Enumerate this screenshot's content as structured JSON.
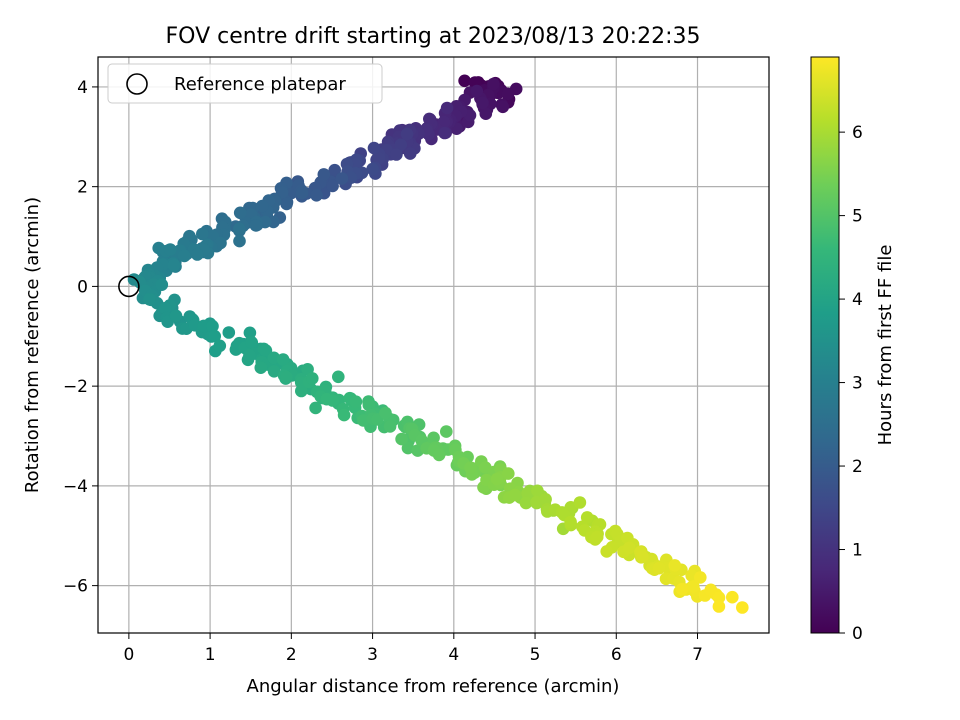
{
  "chart_data": {
    "type": "scatter",
    "title": "FOV centre drift starting at 2023/08/13 20:22:35",
    "xlabel": "Angular distance from reference (arcmin)",
    "ylabel": "Rotation from reference (arcmin)",
    "xlim": [
      -0.38,
      7.88
    ],
    "ylim": [
      -6.95,
      4.6
    ],
    "xticks": [
      0,
      1,
      2,
      3,
      4,
      5,
      6,
      7
    ],
    "yticks": [
      -6,
      -4,
      -2,
      0,
      2,
      4
    ],
    "grid": true,
    "legend": {
      "placement": "top-left",
      "entries": [
        "Reference platepar"
      ]
    },
    "reference_point": {
      "x": 0,
      "y": 0
    },
    "colorbar": {
      "label": "Hours from first FF file",
      "colormap": "viridis",
      "range": [
        0,
        6.9
      ],
      "ticks": [
        0,
        1,
        2,
        3,
        4,
        5,
        6
      ]
    },
    "path_knots": [
      {
        "t": 0.0,
        "x": 4.25,
        "y": 4.05
      },
      {
        "t": 0.2,
        "x": 4.65,
        "y": 3.85
      },
      {
        "t": 0.6,
        "x": 4.0,
        "y": 3.4
      },
      {
        "t": 1.0,
        "x": 3.5,
        "y": 3.05
      },
      {
        "t": 1.5,
        "x": 2.9,
        "y": 2.4
      },
      {
        "t": 2.0,
        "x": 2.1,
        "y": 1.85
      },
      {
        "t": 2.5,
        "x": 1.3,
        "y": 1.2
      },
      {
        "t": 3.0,
        "x": 0.5,
        "y": 0.5
      },
      {
        "t": 3.3,
        "x": 0.2,
        "y": 0.0
      },
      {
        "t": 3.6,
        "x": 0.6,
        "y": -0.6
      },
      {
        "t": 4.0,
        "x": 1.5,
        "y": -1.3
      },
      {
        "t": 4.5,
        "x": 2.5,
        "y": -2.2
      },
      {
        "t": 5.0,
        "x": 3.5,
        "y": -3.0
      },
      {
        "t": 5.5,
        "x": 4.4,
        "y": -3.8
      },
      {
        "t": 6.0,
        "x": 5.3,
        "y": -4.5
      },
      {
        "t": 6.4,
        "x": 6.2,
        "y": -5.3
      },
      {
        "t": 6.7,
        "x": 6.8,
        "y": -5.9
      },
      {
        "t": 6.9,
        "x": 7.4,
        "y": -6.3
      }
    ],
    "n_points": 520,
    "scatter": {
      "x": 0.11,
      "y": 0.12
    },
    "colors": {
      "grid": "#b0b0b0",
      "axes": "#000000",
      "reference_marker": "#000000",
      "viridis_stops": [
        "#440154",
        "#482878",
        "#3e4989",
        "#31688e",
        "#26828e",
        "#1f9e89",
        "#35b779",
        "#6ece58",
        "#b5de2b",
        "#fde725"
      ]
    }
  }
}
